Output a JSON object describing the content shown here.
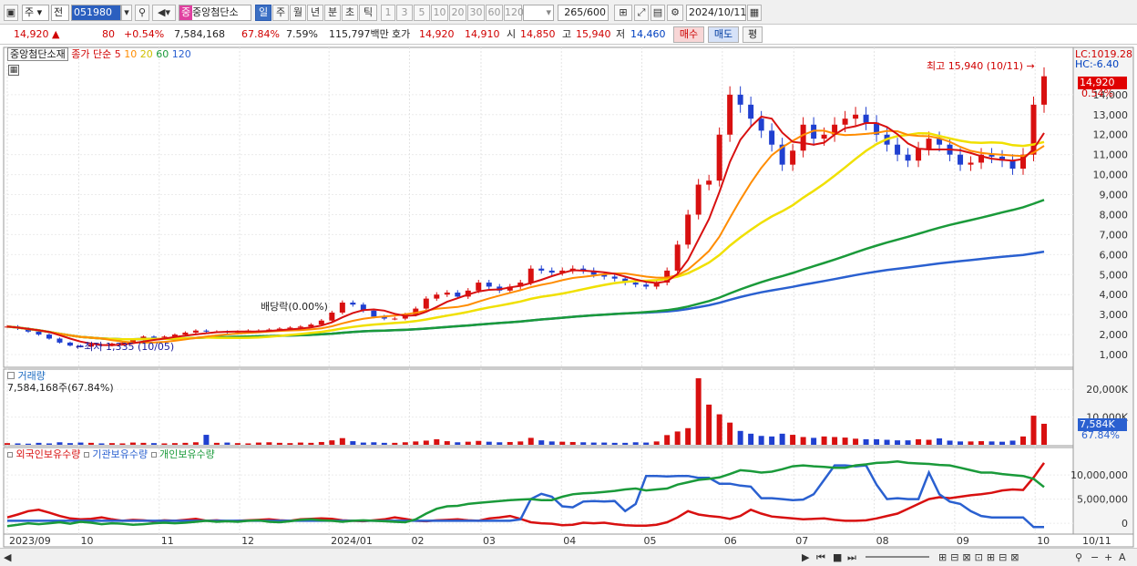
{
  "toolbar": {
    "market": "주",
    "prefix": "전",
    "code": "051980",
    "stock_badge": "중",
    "stock_name": "중앙첨단소",
    "periods": [
      "일",
      "주",
      "월",
      "년",
      "분",
      "초",
      "틱"
    ],
    "numbers": [
      "1",
      "3",
      "5",
      "10",
      "20",
      "30",
      "60",
      "120"
    ],
    "count": "265",
    "count_total": "/600",
    "date": "2024/10/11"
  },
  "quote": {
    "price": "14,920",
    "change": "80",
    "change_pct": "+0.54%",
    "volume": "7,584,168",
    "vol_ratio": "67.84%",
    "turnover": "7.59%",
    "amount": "115,797백만",
    "bid_label": "호가",
    "bid1": "14,920",
    "bid2": "14,910",
    "open_label": "시",
    "open": "14,850",
    "high_label": "고",
    "high": "15,940",
    "low_label": "저",
    "low": "14,460",
    "buy": "매수",
    "sell": "매도",
    "eval": "평"
  },
  "price_panel": {
    "name": "중앙첨단소재",
    "ma_title": "종가 단순",
    "ma": [
      {
        "label": "5",
        "color": "#d81010"
      },
      {
        "label": "10",
        "color": "#ff8c00"
      },
      {
        "label": "20",
        "color": "#e8d800"
      },
      {
        "label": "60",
        "color": "#1a9a3a"
      },
      {
        "label": "120",
        "color": "#2a60d0"
      }
    ],
    "lc": "LC:1019.28",
    "hc": "HC:-6.40",
    "cur_price": "14,920",
    "cur_pct": "0.54%",
    "high_ann": "최고 15,940 (10/11)",
    "low_ann": "최저 1,335 (10/05)",
    "div_ann": "배당락(0.00%)",
    "y_ticks": [
      "14,000",
      "13,000",
      "12,000",
      "11,000",
      "10,000",
      "9,000",
      "8,000",
      "7,000",
      "6,000",
      "5,000",
      "4,000",
      "3,000",
      "2,000",
      "1,000"
    ]
  },
  "volume_panel": {
    "title": "거래량",
    "value": "7,584,168주(67.84%)",
    "ticks": [
      "20,000K",
      "10,000K"
    ],
    "cur": "7,584K",
    "cur_pct": "67.84%"
  },
  "holder_panel": {
    "legend": [
      {
        "label": "외국인보유수량",
        "color": "#d81010"
      },
      {
        "label": "기관보유수량",
        "color": "#2a60d0"
      },
      {
        "label": "개인보유수량",
        "color": "#1a9a3a"
      }
    ],
    "ticks": [
      "10,000,000",
      "5,000,000",
      "0"
    ]
  },
  "x_axis": [
    "2023/09",
    "10",
    "11",
    "12",
    "2024/01",
    "02",
    "03",
    "04",
    "05",
    "06",
    "07",
    "08",
    "09",
    "10"
  ],
  "x_end": "10/11",
  "chart_data": {
    "type": "line",
    "title": "",
    "price_ylim": [
      500,
      16000
    ],
    "series": [
      {
        "name": "종가",
        "values": [
          2400,
          2300,
          2150,
          2000,
          1800,
          1600,
          1450,
          1400,
          1500,
          1450,
          1550,
          1600,
          1750,
          1900,
          1850,
          1900,
          2000,
          2100,
          2200,
          2150,
          2150,
          2100,
          2150,
          2200,
          2200,
          2250,
          2300,
          2350,
          2400,
          2500,
          2700,
          3100,
          3600,
          3500,
          3200,
          2900,
          2800,
          2800,
          3000,
          3300,
          3800,
          4000,
          4100,
          3900,
          4200,
          4600,
          4400,
          4200,
          4400,
          4600,
          5300,
          5200,
          5100,
          5200,
          5300,
          5200,
          5000,
          4900,
          4800,
          4600,
          4500,
          4400,
          4600,
          5200,
          6500,
          8000,
          9500,
          9700,
          12000,
          14000,
          13500,
          12800,
          12200,
          11500,
          10500,
          11200,
          12500,
          11800,
          12000,
          12500,
          12800,
          13000,
          12600,
          12000,
          11500,
          11000,
          10700,
          11300,
          11800,
          11500,
          11000,
          10500,
          10600,
          11000,
          10900,
          10700,
          10300,
          11000,
          13500,
          14920
        ]
      },
      {
        "name": "5",
        "values": []
      },
      {
        "name": "10",
        "values": []
      },
      {
        "name": "20",
        "values": []
      },
      {
        "name": "60",
        "values": []
      },
      {
        "name": "120",
        "values": []
      }
    ],
    "volume_ylim": [
      0,
      25000
    ],
    "volume_values": [
      600,
      500,
      400,
      700,
      500,
      900,
      600,
      800,
      700,
      500,
      600,
      500,
      800,
      700,
      600,
      500,
      600,
      700,
      900,
      3600,
      700,
      800,
      600,
      500,
      800,
      900,
      700,
      600,
      800,
      700,
      1000,
      1600,
      2400,
      1300,
      800,
      900,
      700,
      700,
      900,
      1200,
      1500,
      2000,
      1300,
      900,
      1100,
      1400,
      1100,
      900,
      1000,
      1200,
      2500,
      1600,
      1200,
      1100,
      1000,
      900,
      800,
      800,
      700,
      700,
      900,
      800,
      1200,
      3500,
      4800,
      6000,
      24000,
      14500,
      11000,
      8000,
      5000,
      4000,
      3200,
      3000,
      4000,
      3600,
      2800,
      2500,
      3000,
      2800,
      2600,
      2200,
      2000,
      2000,
      1800,
      1600,
      1600,
      2000,
      1800,
      2300,
      1500,
      1200,
      1200,
      1300,
      1200,
      1100,
      1500,
      3000,
      10500,
      7584
    ],
    "holder_ylim": [
      -1500000,
      14000000
    ],
    "holder_series": [
      {
        "name": "외국인보유수량",
        "values": [
          1200000,
          1800000,
          2500000,
          2800000,
          2200000,
          1500000,
          1000000,
          800000,
          900000,
          1200000,
          800000,
          500000,
          700000,
          600000,
          400000,
          600000,
          500000,
          700000,
          900000,
          500000,
          600000,
          400000,
          500000,
          600000,
          700000,
          800000,
          600000,
          500000,
          800000,
          900000,
          1000000,
          900000,
          600000,
          500000,
          400000,
          600000,
          800000,
          1200000,
          900000,
          500000,
          400000,
          600000,
          700000,
          800000,
          600000,
          500000,
          1000000,
          1200000,
          1500000,
          900000,
          200000,
          0,
          -100000,
          -400000,
          -300000,
          100000,
          0,
          100000,
          -200000,
          -400000,
          -500000,
          -500000,
          -300000,
          200000,
          1200000,
          2500000,
          1800000,
          1500000,
          1300000,
          900000,
          1500000,
          2800000,
          2000000,
          1400000,
          1200000,
          1000000,
          800000,
          900000,
          1000000,
          700000,
          500000,
          500000,
          600000,
          1000000,
          1500000,
          2000000,
          3000000,
          4000000,
          5000000,
          5400000,
          5200000,
          5500000,
          5800000,
          6000000,
          6300000,
          6800000,
          7000000,
          6900000,
          9500000,
          12500000
        ]
      },
      {
        "name": "기관보유수량",
        "values": [
          500000,
          500000,
          500000,
          500000,
          500000,
          500000,
          500000,
          500000,
          500000,
          500000,
          500000,
          500000,
          500000,
          500000,
          500000,
          500000,
          500000,
          500000,
          500000,
          500000,
          500000,
          500000,
          500000,
          500000,
          500000,
          500000,
          500000,
          500000,
          500000,
          500000,
          500000,
          500000,
          500000,
          500000,
          500000,
          500000,
          500000,
          500000,
          500000,
          500000,
          500000,
          500000,
          500000,
          500000,
          500000,
          500000,
          500000,
          500000,
          500000,
          800000,
          5000000,
          6100000,
          5500000,
          3500000,
          3300000,
          4500000,
          4600000,
          4500000,
          4600000,
          2500000,
          4000000,
          9800000,
          9800000,
          9700000,
          9800000,
          9800000,
          9400000,
          9400000,
          8200000,
          8200000,
          7800000,
          7600000,
          5200000,
          5200000,
          5000000,
          4800000,
          4900000,
          6000000,
          9000000,
          12000000,
          12000000,
          11800000,
          12000000,
          8000000,
          5000000,
          5200000,
          5000000,
          5000000,
          10500000,
          6000000,
          4500000,
          4000000,
          2500000,
          1500000,
          1200000,
          1200000,
          1200000,
          1200000,
          -800000,
          -800000
        ]
      },
      {
        "name": "개인보유수량",
        "values": [
          -600000,
          -300000,
          0,
          -200000,
          0,
          200000,
          -100000,
          300000,
          100000,
          -200000,
          0,
          -100000,
          -300000,
          -200000,
          0,
          100000,
          0,
          100000,
          300000,
          500000,
          300000,
          400000,
          300000,
          500000,
          600000,
          300000,
          200000,
          400000,
          700000,
          800000,
          600000,
          500000,
          300000,
          500000,
          600000,
          500000,
          400000,
          300000,
          200000,
          800000,
          2000000,
          3000000,
          3500000,
          3600000,
          4000000,
          4200000,
          4400000,
          4600000,
          4800000,
          4900000,
          5000000,
          4800000,
          4800000,
          5500000,
          6000000,
          6200000,
          6300000,
          6500000,
          6700000,
          7000000,
          7200000,
          6800000,
          7000000,
          7200000,
          8000000,
          8500000,
          9000000,
          9200000,
          9500000,
          10200000,
          11000000,
          10800000,
          10500000,
          10700000,
          11200000,
          11800000,
          12000000,
          11800000,
          11700000,
          11500000,
          11500000,
          12000000,
          12200000,
          12500000,
          12600000,
          12800000,
          12500000,
          12400000,
          12300000,
          12100000,
          12000000,
          11500000,
          11000000,
          10500000,
          10500000,
          10200000,
          10000000,
          9800000,
          9200000,
          7500000
        ]
      }
    ]
  }
}
